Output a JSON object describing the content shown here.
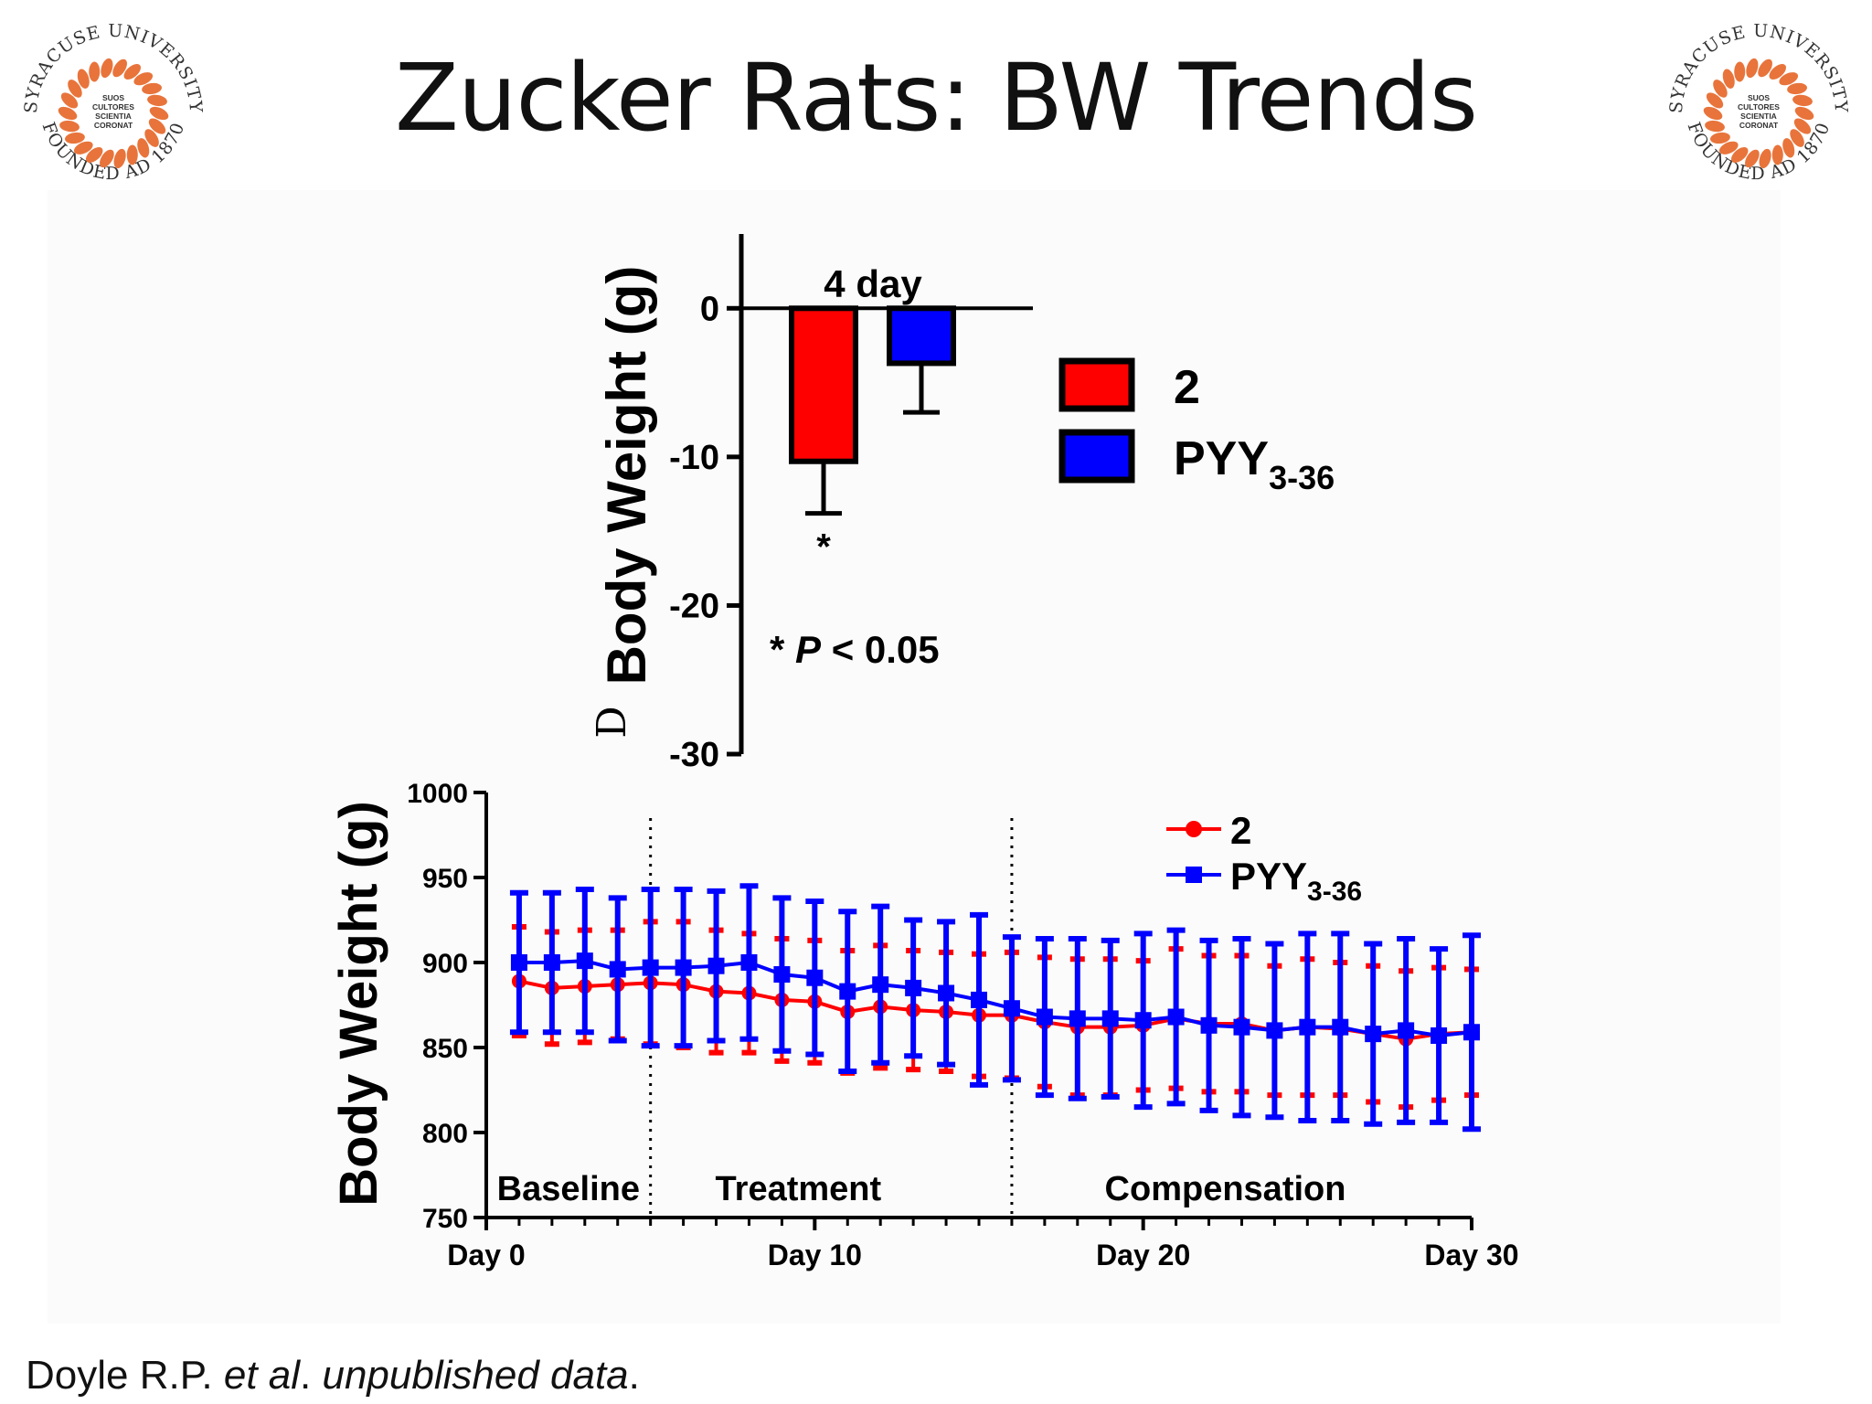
{
  "slide": {
    "title": "Zucker Rats: BW Trends",
    "footer": {
      "authors": "Doyle R.P. ",
      "etal": "et al",
      "sep": ". ",
      "note": "unpublished data",
      "end": "."
    }
  },
  "logo": {
    "text_top": "SYRACUSE UNIVERSITY",
    "text_bottom": "FOUNDED AD 1870",
    "motto": [
      "SUOS",
      "CULTORES",
      "SCIENTIA",
      "CORONAT"
    ],
    "color": "#e8743b"
  },
  "chart_data": [
    {
      "type": "bar",
      "annotation": "4 day",
      "categories": [
        "2",
        "PYY3-36"
      ],
      "values": [
        -10.3,
        -3.7
      ],
      "error": [
        3.5,
        3.3
      ],
      "colors": [
        "#ff0000",
        "#0000ff"
      ],
      "significance": [
        "*",
        ""
      ],
      "ylabel": "Body  Weight (g)",
      "ylabel_prefix": "D",
      "ylim": [
        -30,
        5
      ],
      "yticks": [
        0,
        -10,
        -20,
        -30
      ],
      "note": "* P < 0.05",
      "legend": [
        {
          "name": "2",
          "color": "#ff0000"
        },
        {
          "name": "PYY",
          "sub": "3-36",
          "color": "#0000ff"
        }
      ],
      "legend_position": "right"
    },
    {
      "type": "line",
      "xlabel": "",
      "ylabel": "Body  Weight  (g)",
      "xlim": [
        0,
        30
      ],
      "ylim": [
        750,
        1000
      ],
      "yticks": [
        1000,
        950,
        900,
        850,
        800,
        750
      ],
      "xticks": [
        {
          "value": 0,
          "label": "Day 0"
        },
        {
          "value": 10,
          "label": "Day 10"
        },
        {
          "value": 20,
          "label": "Day 20"
        },
        {
          "value": 30,
          "label": "Day 30"
        }
      ],
      "phase_dividers": [
        5,
        16
      ],
      "phases": [
        {
          "label": "Baseline",
          "at": 2.5
        },
        {
          "label": "Treatment",
          "at": 9.5
        },
        {
          "label": "Compensation",
          "at": 22.5
        }
      ],
      "x": [
        1,
        2,
        3,
        4,
        5,
        6,
        7,
        8,
        9,
        10,
        11,
        12,
        13,
        14,
        15,
        16,
        17,
        18,
        19,
        20,
        21,
        22,
        23,
        24,
        25,
        26,
        27,
        28,
        29,
        30
      ],
      "series": [
        {
          "name": "2",
          "color": "#ff0000",
          "marker": "circle",
          "values": [
            889,
            885,
            886,
            887,
            888,
            887,
            883,
            882,
            878,
            877,
            871,
            874,
            872,
            871,
            869,
            869,
            865,
            862,
            862,
            863,
            867,
            864,
            864,
            860,
            862,
            861,
            858,
            855,
            858,
            859
          ],
          "error": [
            32,
            33,
            33,
            32,
            36,
            37,
            36,
            35,
            36,
            36,
            36,
            36,
            35,
            35,
            36,
            37,
            38,
            40,
            40,
            38,
            41,
            40,
            40,
            38,
            40,
            39,
            40,
            40,
            39,
            37
          ]
        },
        {
          "name": "PYY",
          "sub": "3-36",
          "color": "#0000ff",
          "marker": "square",
          "values": [
            900,
            900,
            901,
            896,
            897,
            897,
            898,
            900,
            893,
            891,
            883,
            887,
            885,
            882,
            878,
            873,
            868,
            867,
            867,
            866,
            868,
            863,
            862,
            860,
            862,
            862,
            858,
            860,
            857,
            859
          ],
          "error": [
            41,
            41,
            42,
            42,
            46,
            46,
            44,
            45,
            45,
            45,
            47,
            46,
            40,
            42,
            50,
            42,
            46,
            47,
            46,
            51,
            51,
            50,
            52,
            51,
            55,
            55,
            53,
            54,
            51,
            57
          ]
        }
      ],
      "legend_position": "top-right"
    }
  ]
}
